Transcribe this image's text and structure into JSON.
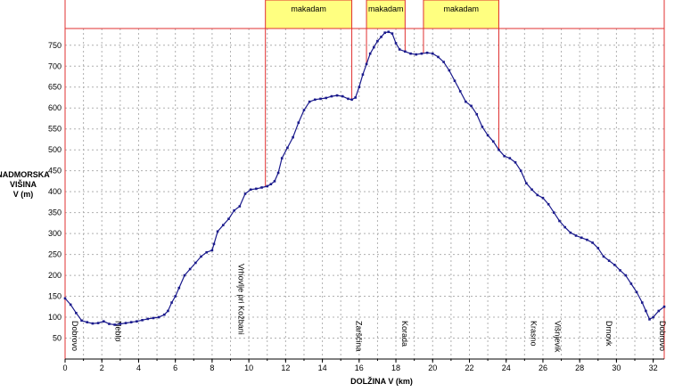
{
  "chart_data": {
    "type": "line",
    "xlabel": "DOLŽINA V (km)",
    "ylabel_lines": [
      "NADMORSKA",
      "VIŠINA",
      "V (m)"
    ],
    "xlim": [
      0,
      32.6
    ],
    "ylim": [
      0,
      790
    ],
    "x_ticks": [
      0,
      2,
      4,
      6,
      8,
      10,
      12,
      14,
      16,
      18,
      20,
      22,
      24,
      26,
      28,
      30,
      32
    ],
    "y_ticks": [
      50,
      100,
      150,
      200,
      250,
      300,
      350,
      400,
      450,
      500,
      550,
      600,
      650,
      700,
      750
    ],
    "grid": true,
    "colors": {
      "line": "#1a1a8c",
      "marker": "#1a1a8c",
      "frame": "#e03030",
      "surface_fill": "#ffff80",
      "grid": "#b0b0b0"
    },
    "series": [
      {
        "x": [
          0,
          0.3,
          0.6,
          0.9,
          1.2,
          1.5,
          1.8,
          2.1,
          2.4,
          2.7,
          3.0,
          3.3,
          3.6,
          3.9,
          4.2,
          4.5,
          4.8,
          5.1,
          5.4,
          5.6,
          5.8,
          6.0,
          6.2,
          6.5,
          6.8,
          7.1,
          7.4,
          7.7,
          8.0,
          8.1,
          8.3,
          8.6,
          8.9,
          9.2,
          9.5,
          9.8,
          10.1,
          10.4,
          10.7,
          11.0,
          11.2,
          11.4,
          11.6,
          11.8,
          12.1,
          12.4,
          12.7,
          13.0,
          13.3,
          13.6,
          13.9,
          14.2,
          14.5,
          14.8,
          15.1,
          15.4,
          15.6,
          15.8,
          16.0,
          16.2,
          16.4,
          16.6,
          16.8,
          17.0,
          17.2,
          17.4,
          17.6,
          17.8,
          18.0,
          18.2,
          18.5,
          18.8,
          19.1,
          19.4,
          19.7,
          20.0,
          20.3,
          20.6,
          20.9,
          21.2,
          21.5,
          21.8,
          22.1,
          22.4,
          22.7,
          23.0,
          23.3,
          23.6,
          23.9,
          24.2,
          24.5,
          24.8,
          25.1,
          25.4,
          25.7,
          26.0,
          26.3,
          26.6,
          26.9,
          27.2,
          27.5,
          27.8,
          28.1,
          28.4,
          28.7,
          29.0,
          29.3,
          29.6,
          29.9,
          30.2,
          30.5,
          30.8,
          31.1,
          31.4,
          31.6,
          31.8,
          32.0,
          32.3,
          32.6
        ],
        "y": [
          145,
          130,
          110,
          92,
          88,
          85,
          86,
          90,
          84,
          82,
          84,
          86,
          88,
          90,
          93,
          96,
          98,
          100,
          106,
          115,
          135,
          150,
          170,
          200,
          215,
          230,
          245,
          255,
          260,
          275,
          305,
          320,
          335,
          355,
          365,
          395,
          405,
          407,
          410,
          413,
          418,
          425,
          445,
          480,
          505,
          530,
          565,
          595,
          615,
          620,
          622,
          624,
          628,
          630,
          628,
          622,
          620,
          625,
          650,
          680,
          705,
          730,
          745,
          760,
          770,
          780,
          782,
          778,
          755,
          740,
          735,
          730,
          728,
          730,
          732,
          730,
          722,
          710,
          690,
          665,
          640,
          615,
          605,
          585,
          555,
          535,
          520,
          500,
          485,
          480,
          470,
          450,
          420,
          405,
          392,
          385,
          370,
          350,
          330,
          315,
          302,
          295,
          290,
          285,
          278,
          265,
          245,
          235,
          225,
          212,
          200,
          180,
          160,
          135,
          115,
          95,
          100,
          115,
          125
        ]
      }
    ],
    "places": [
      {
        "label": "Dobrovo",
        "x": 0.25
      },
      {
        "label": "Neblo",
        "x": 2.6
      },
      {
        "label": "Vrhovlje pri Kožbani",
        "x": 9.3
      },
      {
        "label": "Zarščina",
        "x": 15.7
      },
      {
        "label": "Korada",
        "x": 18.2
      },
      {
        "label": "Krasno",
        "x": 25.2
      },
      {
        "label": "Višnjevik",
        "x": 26.5
      },
      {
        "label": "Drnovk",
        "x": 29.3
      },
      {
        "label": "Dobrovo",
        "x": 32.2
      }
    ],
    "surface_segments": [
      {
        "label": "makadam",
        "start": 10.9,
        "end": 15.6
      },
      {
        "label": "makadam",
        "start": 16.4,
        "end": 18.5
      },
      {
        "label": "makadam",
        "start": 19.5,
        "end": 23.6
      }
    ]
  }
}
